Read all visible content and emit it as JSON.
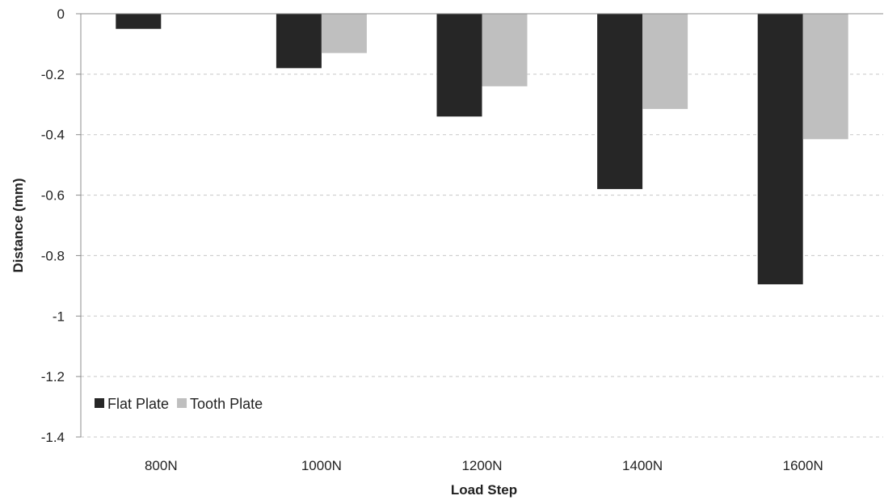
{
  "chart_data": {
    "type": "bar",
    "title": "",
    "xlabel": "Load Step",
    "ylabel": "Distance (mm)",
    "categories": [
      "800N",
      "1000N",
      "1200N",
      "1400N",
      "1600N"
    ],
    "series": [
      {
        "name": "Flat Plate",
        "color": "#262626",
        "values": [
          -0.05,
          -0.18,
          -0.34,
          -0.58,
          -0.895
        ]
      },
      {
        "name": "Tooth Plate",
        "color": "#bfbfbf",
        "values": [
          0,
          -0.13,
          -0.24,
          -0.315,
          -0.415
        ]
      }
    ],
    "ylim": [
      -1.4,
      0
    ],
    "yticks": [
      {
        "value": 0,
        "label": "0"
      },
      {
        "value": -0.2,
        "label": "-0.2"
      },
      {
        "value": -0.4,
        "label": "-0.4"
      },
      {
        "value": -0.6,
        "label": "-0.6"
      },
      {
        "value": -0.8,
        "label": "-0.8"
      },
      {
        "value": -1,
        "label": "-1"
      },
      {
        "value": -1.2,
        "label": "-1.2"
      },
      {
        "value": -1.4,
        "label": "-1.4"
      }
    ],
    "grid": {
      "horizontal": true,
      "style": "dashed",
      "color": "#c8c8c8"
    },
    "legend": {
      "position": "bottom-left"
    }
  }
}
